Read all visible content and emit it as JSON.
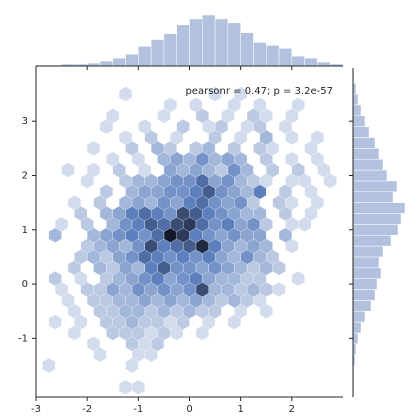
{
  "chart_data": {
    "type": "hexbin",
    "annotation": "pearsonr = 0.47; p = 3.2e-57",
    "xlim": [
      -3,
      3
    ],
    "ylim": [
      -2.08,
      3.98
    ],
    "xticks": [
      -3,
      -2,
      -1,
      0,
      1,
      2
    ],
    "yticks": [
      -1,
      0,
      1,
      2,
      3
    ],
    "colors": [
      "#eaeef6",
      "#5c7fbd",
      "#14192a"
    ],
    "hist_color": "#b2c1dd",
    "cells": [
      [
        -1.25,
        3.5,
        1
      ],
      [
        0.5,
        3.5,
        1
      ],
      [
        1.0,
        3.5,
        1
      ],
      [
        -0.375,
        3.3,
        1
      ],
      [
        0.125,
        3.3,
        1
      ],
      [
        0.875,
        3.3,
        1
      ],
      [
        1.375,
        3.3,
        1
      ],
      [
        2.125,
        3.3,
        1
      ],
      [
        -1.5,
        3.1,
        1
      ],
      [
        -0.5,
        3.1,
        1
      ],
      [
        0.25,
        3.1,
        2
      ],
      [
        0.75,
        3.1,
        1
      ],
      [
        1.25,
        3.1,
        2
      ],
      [
        1.5,
        3.1,
        1
      ],
      [
        2.0,
        3.1,
        1
      ],
      [
        -1.625,
        2.9,
        1
      ],
      [
        -0.875,
        2.9,
        1
      ],
      [
        -0.125,
        2.9,
        2
      ],
      [
        0.375,
        2.9,
        1
      ],
      [
        0.625,
        2.9,
        2
      ],
      [
        1.125,
        2.9,
        1
      ],
      [
        1.375,
        2.9,
        2
      ],
      [
        1.875,
        2.9,
        1
      ],
      [
        -1.25,
        2.7,
        1
      ],
      [
        -0.75,
        2.7,
        2
      ],
      [
        -0.25,
        2.7,
        1
      ],
      [
        0.5,
        2.7,
        2
      ],
      [
        1.0,
        2.7,
        1
      ],
      [
        1.5,
        2.7,
        3
      ],
      [
        2.0,
        2.7,
        1
      ],
      [
        2.5,
        2.7,
        1
      ],
      [
        -1.875,
        2.5,
        1
      ],
      [
        -1.125,
        2.5,
        2
      ],
      [
        -0.625,
        2.5,
        3
      ],
      [
        -0.375,
        2.5,
        2
      ],
      [
        0.125,
        2.5,
        2
      ],
      [
        0.375,
        2.5,
        3
      ],
      [
        0.875,
        2.5,
        2
      ],
      [
        1.375,
        2.5,
        2
      ],
      [
        1.625,
        2.5,
        1
      ],
      [
        2.375,
        2.5,
        1
      ],
      [
        -1.5,
        2.3,
        1
      ],
      [
        -1.0,
        2.3,
        1
      ],
      [
        -0.5,
        2.3,
        3
      ],
      [
        -0.25,
        2.3,
        4
      ],
      [
        0.0,
        2.3,
        3
      ],
      [
        0.25,
        2.3,
        5
      ],
      [
        0.5,
        2.3,
        3
      ],
      [
        0.75,
        2.3,
        4
      ],
      [
        1.0,
        2.3,
        3
      ],
      [
        1.5,
        2.3,
        2
      ],
      [
        2.0,
        2.3,
        1
      ],
      [
        2.5,
        2.3,
        1
      ],
      [
        -2.375,
        2.1,
        1
      ],
      [
        -1.875,
        2.1,
        1
      ],
      [
        -1.375,
        2.1,
        2
      ],
      [
        -0.875,
        2.1,
        1
      ],
      [
        -0.375,
        2.1,
        4
      ],
      [
        -0.125,
        2.1,
        3
      ],
      [
        0.125,
        2.1,
        4
      ],
      [
        0.375,
        2.1,
        3
      ],
      [
        0.625,
        2.1,
        2
      ],
      [
        0.875,
        2.1,
        5
      ],
      [
        1.125,
        2.1,
        3
      ],
      [
        1.625,
        2.1,
        2
      ],
      [
        2.125,
        2.1,
        2
      ],
      [
        2.625,
        2.1,
        1
      ],
      [
        -2.0,
        1.9,
        1
      ],
      [
        -1.25,
        1.9,
        2
      ],
      [
        -1.0,
        1.9,
        3
      ],
      [
        -0.75,
        1.9,
        3
      ],
      [
        -0.5,
        1.9,
        4
      ],
      [
        -0.25,
        1.9,
        5
      ],
      [
        0.0,
        1.9,
        5
      ],
      [
        0.25,
        1.9,
        7
      ],
      [
        0.5,
        1.9,
        4
      ],
      [
        0.75,
        1.9,
        5
      ],
      [
        1.0,
        1.9,
        3
      ],
      [
        1.25,
        1.9,
        2
      ],
      [
        1.5,
        1.9,
        1
      ],
      [
        2.0,
        1.9,
        1
      ],
      [
        2.25,
        1.9,
        1
      ],
      [
        2.75,
        1.9,
        1
      ],
      [
        -1.625,
        1.7,
        2
      ],
      [
        -1.125,
        1.7,
        3
      ],
      [
        -0.875,
        1.7,
        4
      ],
      [
        -0.625,
        1.7,
        4
      ],
      [
        -0.375,
        1.7,
        5
      ],
      [
        -0.125,
        1.7,
        5
      ],
      [
        0.125,
        1.7,
        6
      ],
      [
        0.375,
        1.7,
        8
      ],
      [
        0.625,
        1.7,
        5
      ],
      [
        0.875,
        1.7,
        4
      ],
      [
        1.125,
        1.7,
        3
      ],
      [
        1.375,
        1.7,
        6
      ],
      [
        1.875,
        1.7,
        2
      ],
      [
        2.375,
        1.7,
        1
      ],
      [
        -2.25,
        1.5,
        1
      ],
      [
        -1.75,
        1.5,
        2
      ],
      [
        -1.25,
        1.5,
        3
      ],
      [
        -1.0,
        1.5,
        4
      ],
      [
        -0.75,
        1.5,
        3
      ],
      [
        -0.5,
        1.5,
        5
      ],
      [
        -0.25,
        1.5,
        4
      ],
      [
        0.0,
        1.5,
        6
      ],
      [
        0.25,
        1.5,
        7
      ],
      [
        0.5,
        1.5,
        5
      ],
      [
        0.75,
        1.5,
        4
      ],
      [
        1.0,
        1.5,
        5
      ],
      [
        1.25,
        1.5,
        2
      ],
      [
        1.75,
        1.5,
        2
      ],
      [
        2.0,
        1.5,
        1
      ],
      [
        2.5,
        1.5,
        1
      ],
      [
        -2.125,
        1.3,
        2
      ],
      [
        -1.625,
        1.3,
        3
      ],
      [
        -1.375,
        1.3,
        4
      ],
      [
        -1.125,
        1.3,
        6
      ],
      [
        -0.875,
        1.3,
        7
      ],
      [
        -0.625,
        1.3,
        6
      ],
      [
        -0.375,
        1.3,
        5
      ],
      [
        -0.125,
        1.3,
        9
      ],
      [
        0.125,
        1.3,
        8
      ],
      [
        0.375,
        1.3,
        6
      ],
      [
        0.625,
        1.3,
        5
      ],
      [
        0.875,
        1.3,
        4
      ],
      [
        1.125,
        1.3,
        3
      ],
      [
        1.375,
        1.3,
        3
      ],
      [
        1.875,
        1.3,
        2
      ],
      [
        2.375,
        1.3,
        1
      ],
      [
        -2.5,
        1.1,
        1
      ],
      [
        -2.0,
        1.1,
        2
      ],
      [
        -1.5,
        1.1,
        3
      ],
      [
        -1.25,
        1.1,
        5
      ],
      [
        -1.0,
        1.1,
        6
      ],
      [
        -0.75,
        1.1,
        8
      ],
      [
        -0.5,
        1.1,
        7
      ],
      [
        -0.25,
        1.1,
        9
      ],
      [
        0.0,
        1.1,
        10
      ],
      [
        0.25,
        1.1,
        7
      ],
      [
        0.5,
        1.1,
        5
      ],
      [
        0.75,
        1.1,
        6
      ],
      [
        1.0,
        1.1,
        4
      ],
      [
        1.25,
        1.1,
        5
      ],
      [
        1.5,
        1.1,
        2
      ],
      [
        2.0,
        1.1,
        1
      ],
      [
        2.25,
        1.1,
        1
      ],
      [
        -2.625,
        0.9,
        3
      ],
      [
        -1.875,
        0.9,
        3
      ],
      [
        -1.625,
        0.9,
        4
      ],
      [
        -1.375,
        0.9,
        5
      ],
      [
        -1.125,
        0.9,
        6
      ],
      [
        -0.875,
        0.9,
        5
      ],
      [
        -0.625,
        0.9,
        7
      ],
      [
        -0.375,
        0.9,
        12
      ],
      [
        -0.125,
        0.9,
        10
      ],
      [
        0.125,
        0.9,
        6
      ],
      [
        0.375,
        0.9,
        5
      ],
      [
        0.625,
        0.9,
        4
      ],
      [
        0.875,
        0.9,
        5
      ],
      [
        1.125,
        0.9,
        4
      ],
      [
        1.375,
        0.9,
        4
      ],
      [
        1.875,
        0.9,
        3
      ],
      [
        -2.0,
        0.7,
        2
      ],
      [
        -1.75,
        0.7,
        3
      ],
      [
        -1.5,
        0.7,
        4
      ],
      [
        -1.25,
        0.7,
        3
      ],
      [
        -1.0,
        0.7,
        5
      ],
      [
        -0.75,
        0.7,
        9
      ],
      [
        -0.5,
        0.7,
        6
      ],
      [
        -0.25,
        0.7,
        7
      ],
      [
        0.0,
        0.7,
        8
      ],
      [
        0.25,
        0.7,
        11
      ],
      [
        0.5,
        0.7,
        6
      ],
      [
        0.75,
        0.7,
        4
      ],
      [
        1.0,
        0.7,
        3
      ],
      [
        1.25,
        0.7,
        4
      ],
      [
        1.5,
        0.7,
        3
      ],
      [
        2.0,
        0.7,
        1
      ],
      [
        -2.125,
        0.5,
        2
      ],
      [
        -1.875,
        0.5,
        3
      ],
      [
        -1.625,
        0.5,
        2
      ],
      [
        -1.375,
        0.5,
        4
      ],
      [
        -1.125,
        0.5,
        5
      ],
      [
        -0.875,
        0.5,
        7
      ],
      [
        -0.625,
        0.5,
        6
      ],
      [
        -0.375,
        0.5,
        5
      ],
      [
        -0.125,
        0.5,
        6
      ],
      [
        0.125,
        0.5,
        5
      ],
      [
        0.375,
        0.5,
        6
      ],
      [
        0.625,
        0.5,
        4
      ],
      [
        0.875,
        0.5,
        3
      ],
      [
        1.125,
        0.5,
        5
      ],
      [
        1.375,
        0.5,
        3
      ],
      [
        1.625,
        0.5,
        2
      ],
      [
        -2.25,
        0.3,
        2
      ],
      [
        -1.75,
        0.3,
        3
      ],
      [
        -1.5,
        0.3,
        2
      ],
      [
        -1.25,
        0.3,
        4
      ],
      [
        -1.0,
        0.3,
        3
      ],
      [
        -0.75,
        0.3,
        6
      ],
      [
        -0.5,
        0.3,
        8
      ],
      [
        -0.25,
        0.3,
        5
      ],
      [
        0.0,
        0.3,
        5
      ],
      [
        0.25,
        0.3,
        4
      ],
      [
        0.5,
        0.3,
        5
      ],
      [
        0.75,
        0.3,
        4
      ],
      [
        1.0,
        0.3,
        3
      ],
      [
        1.25,
        0.3,
        2
      ],
      [
        1.5,
        0.3,
        3
      ],
      [
        1.75,
        0.3,
        2
      ],
      [
        -2.625,
        0.1,
        2
      ],
      [
        -2.125,
        0.1,
        1
      ],
      [
        -1.625,
        0.1,
        2
      ],
      [
        -1.375,
        0.1,
        3
      ],
      [
        -1.125,
        0.1,
        4
      ],
      [
        -0.875,
        0.1,
        5
      ],
      [
        -0.625,
        0.1,
        6
      ],
      [
        -0.375,
        0.1,
        4
      ],
      [
        -0.125,
        0.1,
        5
      ],
      [
        0.125,
        0.1,
        6
      ],
      [
        0.375,
        0.1,
        4
      ],
      [
        0.625,
        0.1,
        3
      ],
      [
        0.875,
        0.1,
        3
      ],
      [
        1.125,
        0.1,
        2
      ],
      [
        1.375,
        0.1,
        2
      ],
      [
        2.125,
        0.1,
        1
      ],
      [
        -2.5,
        -0.1,
        1
      ],
      [
        -2.0,
        -0.1,
        2
      ],
      [
        -1.75,
        -0.1,
        2
      ],
      [
        -1.5,
        -0.1,
        4
      ],
      [
        -1.25,
        -0.1,
        3
      ],
      [
        -1.0,
        -0.1,
        5
      ],
      [
        -0.75,
        -0.1,
        4
      ],
      [
        -0.5,
        -0.1,
        5
      ],
      [
        -0.25,
        -0.1,
        4
      ],
      [
        0.0,
        -0.1,
        5
      ],
      [
        0.25,
        -0.1,
        9
      ],
      [
        0.5,
        -0.1,
        3
      ],
      [
        0.75,
        -0.1,
        3
      ],
      [
        1.0,
        -0.1,
        2
      ],
      [
        1.25,
        -0.1,
        3
      ],
      [
        1.5,
        -0.1,
        2
      ],
      [
        1.75,
        -0.1,
        1
      ],
      [
        -2.375,
        -0.3,
        1
      ],
      [
        -1.875,
        -0.3,
        2
      ],
      [
        -1.625,
        -0.3,
        2
      ],
      [
        -1.375,
        -0.3,
        3
      ],
      [
        -1.125,
        -0.3,
        3
      ],
      [
        -0.875,
        -0.3,
        4
      ],
      [
        -0.625,
        -0.3,
        3
      ],
      [
        -0.375,
        -0.3,
        4
      ],
      [
        -0.125,
        -0.3,
        3
      ],
      [
        0.125,
        -0.3,
        4
      ],
      [
        0.375,
        -0.3,
        3
      ],
      [
        0.625,
        -0.3,
        2
      ],
      [
        0.875,
        -0.3,
        3
      ],
      [
        1.125,
        -0.3,
        2
      ],
      [
        1.375,
        -0.3,
        1
      ],
      [
        -2.25,
        -0.5,
        1
      ],
      [
        -1.75,
        -0.5,
        2
      ],
      [
        -1.5,
        -0.5,
        2
      ],
      [
        -1.25,
        -0.5,
        3
      ],
      [
        -1.0,
        -0.5,
        3
      ],
      [
        -0.75,
        -0.5,
        2
      ],
      [
        -0.5,
        -0.5,
        3
      ],
      [
        -0.25,
        -0.5,
        2
      ],
      [
        0.0,
        -0.5,
        3
      ],
      [
        0.25,
        -0.5,
        2
      ],
      [
        0.5,
        -0.5,
        2
      ],
      [
        1.0,
        -0.5,
        1
      ],
      [
        1.5,
        -0.5,
        1
      ],
      [
        -2.625,
        -0.7,
        1
      ],
      [
        -2.125,
        -0.7,
        1
      ],
      [
        -1.625,
        -0.7,
        2
      ],
      [
        -1.375,
        -0.7,
        2
      ],
      [
        -1.125,
        -0.7,
        3
      ],
      [
        -0.875,
        -0.7,
        2
      ],
      [
        -0.625,
        -0.7,
        2
      ],
      [
        -0.375,
        -0.7,
        1
      ],
      [
        -0.125,
        -0.7,
        2
      ],
      [
        0.375,
        -0.7,
        1
      ],
      [
        0.875,
        -0.7,
        1
      ],
      [
        -2.25,
        -0.9,
        1
      ],
      [
        -1.5,
        -0.9,
        2
      ],
      [
        -1.25,
        -0.9,
        2
      ],
      [
        -1.0,
        -0.9,
        2
      ],
      [
        -0.75,
        -0.9,
        1
      ],
      [
        -0.5,
        -0.9,
        2
      ],
      [
        -0.25,
        -0.9,
        1
      ],
      [
        0.25,
        -0.9,
        1
      ],
      [
        -1.875,
        -1.1,
        1
      ],
      [
        -1.125,
        -1.1,
        2
      ],
      [
        -0.875,
        -1.1,
        1
      ],
      [
        -0.625,
        -1.1,
        2
      ],
      [
        -1.75,
        -1.3,
        1
      ],
      [
        -1.0,
        -1.3,
        1
      ],
      [
        -0.75,
        -1.3,
        1
      ],
      [
        -2.75,
        -1.5,
        1
      ],
      [
        -1.125,
        -1.5,
        1
      ],
      [
        -1.25,
        -1.9,
        1
      ],
      [
        -1.0,
        -1.9,
        1
      ]
    ],
    "x_hist": {
      "bins": [
        -3,
        -2.75,
        -2.5,
        -2.25,
        -2,
        -1.75,
        -1.5,
        -1.25,
        -1,
        -0.75,
        -0.5,
        -0.25,
        0,
        0.25,
        0.5,
        0.75,
        1,
        1.25,
        1.5,
        1.75,
        2,
        2.25,
        2.5,
        2.75,
        3
      ],
      "counts": [
        1,
        1,
        2,
        2,
        3,
        5,
        8,
        12,
        20,
        27,
        33,
        42,
        48,
        52,
        48,
        44,
        34,
        24,
        21,
        18,
        10,
        8,
        4,
        2
      ]
    },
    "y_hist": {
      "bins": [
        -2.1,
        -1.9,
        -1.7,
        -1.5,
        -1.3,
        -1.1,
        -0.9,
        -0.7,
        -0.5,
        -0.3,
        -0.1,
        0.1,
        0.3,
        0.5,
        0.7,
        0.9,
        1.1,
        1.3,
        1.5,
        1.7,
        1.9,
        2.1,
        2.3,
        2.5,
        2.7,
        2.9,
        3.1,
        3.3,
        3.5,
        3.7,
        3.9
      ],
      "counts": [
        1,
        1,
        1,
        2,
        3,
        5,
        8,
        12,
        18,
        22,
        24,
        28,
        26,
        30,
        38,
        45,
        48,
        52,
        40,
        44,
        34,
        30,
        26,
        22,
        16,
        12,
        8,
        5,
        3,
        1
      ]
    }
  }
}
